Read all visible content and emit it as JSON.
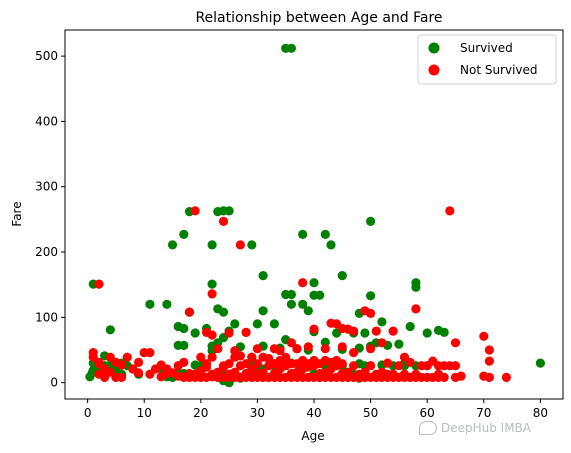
{
  "chart_data": {
    "type": "scatter",
    "title": "Relationship between Age and Fare",
    "xlabel": "Age",
    "ylabel": "Fare",
    "xlim": [
      -4,
      84
    ],
    "ylim": [
      -25,
      540
    ],
    "xticks": [
      0,
      10,
      20,
      30,
      40,
      50,
      60,
      70,
      80
    ],
    "yticks": [
      0,
      100,
      200,
      300,
      400,
      500
    ],
    "grid": false,
    "legend_position": "top-right",
    "series": [
      {
        "name": "Survived",
        "color": "#008000",
        "points": [
          [
            35,
            512
          ],
          [
            36,
            512
          ],
          [
            18,
            262
          ],
          [
            23,
            262
          ],
          [
            24,
            263
          ],
          [
            25,
            263
          ],
          [
            22,
            211
          ],
          [
            15,
            211
          ],
          [
            50,
            247
          ],
          [
            17,
            227
          ],
          [
            29,
            211
          ],
          [
            38,
            227
          ],
          [
            42,
            227
          ],
          [
            43,
            211
          ],
          [
            31,
            164
          ],
          [
            45,
            164
          ],
          [
            58,
            153
          ],
          [
            58,
            146
          ],
          [
            1,
            151
          ],
          [
            40,
            153
          ],
          [
            22,
            151
          ],
          [
            35,
            135
          ],
          [
            36,
            135
          ],
          [
            41,
            134
          ],
          [
            40,
            134
          ],
          [
            50,
            133
          ],
          [
            23,
            113
          ],
          [
            11,
            120
          ],
          [
            14,
            120
          ],
          [
            38,
            120
          ],
          [
            36,
            120
          ],
          [
            18,
            108
          ],
          [
            24,
            108
          ],
          [
            31,
            110
          ],
          [
            39,
            110
          ],
          [
            48,
            106
          ],
          [
            52,
            93
          ],
          [
            33,
            90
          ],
          [
            26,
            90
          ],
          [
            21,
            83
          ],
          [
            17,
            83
          ],
          [
            62,
            80
          ],
          [
            63,
            77
          ],
          [
            60,
            76
          ],
          [
            57,
            86
          ],
          [
            4,
            81
          ],
          [
            16,
            86
          ],
          [
            19,
            76
          ],
          [
            30,
            90
          ],
          [
            49,
            76
          ],
          [
            44,
            76
          ],
          [
            40,
            78
          ],
          [
            47,
            76
          ],
          [
            16,
            57
          ],
          [
            22,
            56
          ],
          [
            23,
            61
          ],
          [
            24,
            69
          ],
          [
            25,
            79
          ],
          [
            28,
            77
          ],
          [
            31,
            56
          ],
          [
            34,
            53
          ],
          [
            37,
            52
          ],
          [
            45,
            51
          ],
          [
            48,
            53
          ],
          [
            50,
            56
          ],
          [
            51,
            61
          ],
          [
            53,
            57
          ],
          [
            55,
            59
          ],
          [
            35,
            66
          ],
          [
            42,
            62
          ],
          [
            17,
            57
          ],
          [
            22,
            49
          ],
          [
            27,
            55
          ],
          [
            29,
            39
          ],
          [
            34,
            31
          ],
          [
            38,
            26
          ],
          [
            44,
            29
          ],
          [
            48,
            29
          ],
          [
            52,
            27
          ],
          [
            56,
            26
          ],
          [
            60,
            26
          ],
          [
            62,
            10
          ],
          [
            80,
            30
          ],
          [
            0.4,
            9
          ],
          [
            0.8,
            15
          ],
          [
            1,
            19
          ],
          [
            2,
            22
          ],
          [
            3,
            26
          ],
          [
            4,
            27
          ],
          [
            5,
            19
          ],
          [
            6,
            13
          ],
          [
            7,
            26
          ],
          [
            8,
            21
          ],
          [
            9,
            13
          ],
          [
            14,
            11
          ],
          [
            15,
            8
          ],
          [
            16,
            15
          ],
          [
            18,
            12
          ],
          [
            19,
            27
          ],
          [
            20,
            26
          ],
          [
            21,
            8
          ],
          [
            22,
            10
          ],
          [
            23,
            12
          ],
          [
            24,
            13
          ],
          [
            25,
            8
          ],
          [
            26,
            13
          ],
          [
            27,
            7
          ],
          [
            28,
            13
          ],
          [
            29,
            26
          ],
          [
            30,
            12
          ],
          [
            31,
            21
          ],
          [
            32,
            8
          ],
          [
            33,
            26
          ],
          [
            35,
            26
          ],
          [
            36,
            13
          ],
          [
            40,
            13
          ],
          [
            41,
            8
          ],
          [
            42,
            26
          ],
          [
            45,
            26
          ],
          [
            47,
            13
          ],
          [
            48,
            7
          ],
          [
            49,
            26
          ],
          [
            50,
            26
          ],
          [
            52,
            10
          ],
          [
            54,
            26
          ],
          [
            56,
            30
          ],
          [
            58,
            26
          ],
          [
            3,
            41
          ],
          [
            1,
            30
          ],
          [
            24,
            3
          ],
          [
            25,
            0
          ],
          [
            30,
            26
          ],
          [
            36,
            30
          ],
          [
            39,
            50
          ],
          [
            13,
            21
          ],
          [
            14,
            9
          ],
          [
            6,
            30
          ],
          [
            17,
            14
          ]
        ]
      },
      {
        "name": "Not Survived",
        "color": "#ff0000",
        "points": [
          [
            64,
            263
          ],
          [
            19,
            263
          ],
          [
            24,
            247
          ],
          [
            27,
            211
          ],
          [
            22,
            136
          ],
          [
            38,
            153
          ],
          [
            18,
            108
          ],
          [
            58,
            113
          ],
          [
            49,
            110
          ],
          [
            50,
            106
          ],
          [
            43,
            91
          ],
          [
            54,
            79
          ],
          [
            44,
            90
          ],
          [
            47,
            79
          ],
          [
            46,
            82
          ],
          [
            21,
            77
          ],
          [
            28,
            77
          ],
          [
            25,
            76
          ],
          [
            40,
            82
          ],
          [
            45,
            83
          ],
          [
            36,
            61
          ],
          [
            65,
            61
          ],
          [
            52,
            61
          ],
          [
            70,
            71
          ],
          [
            71,
            50
          ],
          [
            71,
            33
          ],
          [
            2,
            151
          ],
          [
            22,
            73
          ],
          [
            23,
            52
          ],
          [
            26,
            49
          ],
          [
            30,
            52
          ],
          [
            33,
            52
          ],
          [
            34,
            49
          ],
          [
            37,
            52
          ],
          [
            39,
            55
          ],
          [
            42,
            52
          ],
          [
            45,
            55
          ],
          [
            47,
            46
          ],
          [
            50,
            52
          ],
          [
            53,
            30
          ],
          [
            55,
            26
          ],
          [
            57,
            31
          ],
          [
            59,
            26
          ],
          [
            60,
            26
          ],
          [
            62,
            26
          ],
          [
            64,
            26
          ],
          [
            65,
            26
          ],
          [
            74,
            8
          ],
          [
            66,
            10
          ],
          [
            70,
            10
          ],
          [
            61,
            33
          ],
          [
            56,
            39
          ],
          [
            63,
            26
          ],
          [
            51,
            79
          ],
          [
            1,
            46
          ],
          [
            1,
            39
          ],
          [
            2,
            29
          ],
          [
            2,
            31
          ],
          [
            3,
            21
          ],
          [
            4,
            39
          ],
          [
            5,
            31
          ],
          [
            6,
            27
          ],
          [
            7,
            39
          ],
          [
            8,
            21
          ],
          [
            9,
            31
          ],
          [
            10,
            46
          ],
          [
            11,
            46
          ],
          [
            12,
            21
          ],
          [
            13,
            27
          ],
          [
            14,
            21
          ],
          [
            15,
            15
          ],
          [
            16,
            10
          ],
          [
            17,
            8
          ],
          [
            18,
            8
          ],
          [
            19,
            8
          ],
          [
            20,
            8
          ],
          [
            21,
            8
          ],
          [
            22,
            9
          ],
          [
            23,
            8
          ],
          [
            24,
            8
          ],
          [
            25,
            8
          ],
          [
            26,
            8
          ],
          [
            27,
            8
          ],
          [
            28,
            8
          ],
          [
            29,
            8
          ],
          [
            30,
            8
          ],
          [
            31,
            8
          ],
          [
            32,
            8
          ],
          [
            33,
            8
          ],
          [
            34,
            8
          ],
          [
            35,
            8
          ],
          [
            36,
            8
          ],
          [
            37,
            8
          ],
          [
            38,
            8
          ],
          [
            39,
            8
          ],
          [
            40,
            8
          ],
          [
            41,
            8
          ],
          [
            42,
            8
          ],
          [
            43,
            8
          ],
          [
            44,
            8
          ],
          [
            45,
            8
          ],
          [
            46,
            8
          ],
          [
            47,
            8
          ],
          [
            48,
            8
          ],
          [
            49,
            8
          ],
          [
            50,
            8
          ],
          [
            51,
            8
          ],
          [
            52,
            8
          ],
          [
            53,
            8
          ],
          [
            54,
            8
          ],
          [
            55,
            8
          ],
          [
            56,
            8
          ],
          [
            57,
            8
          ],
          [
            58,
            8
          ],
          [
            59,
            8
          ],
          [
            60,
            8
          ],
          [
            61,
            8
          ],
          [
            62,
            8
          ],
          [
            63,
            8
          ],
          [
            65,
            8
          ],
          [
            71,
            8
          ],
          [
            18,
            14
          ],
          [
            19,
            13
          ],
          [
            20,
            18
          ],
          [
            21,
            24
          ],
          [
            22,
            13
          ],
          [
            23,
            16
          ],
          [
            24,
            24
          ],
          [
            25,
            13
          ],
          [
            26,
            16
          ],
          [
            27,
            26
          ],
          [
            28,
            14
          ],
          [
            29,
            21
          ],
          [
            30,
            14
          ],
          [
            31,
            15
          ],
          [
            32,
            26
          ],
          [
            33,
            14
          ],
          [
            34,
            21
          ],
          [
            35,
            26
          ],
          [
            36,
            14
          ],
          [
            37,
            16
          ],
          [
            38,
            21
          ],
          [
            39,
            24
          ],
          [
            40,
            26
          ],
          [
            41,
            14
          ],
          [
            42,
            15
          ],
          [
            43,
            21
          ],
          [
            44,
            26
          ],
          [
            45,
            14
          ],
          [
            46,
            16
          ],
          [
            47,
            26
          ],
          [
            48,
            13
          ],
          [
            49,
            16
          ],
          [
            50,
            26
          ],
          [
            51,
            13
          ],
          [
            52,
            16
          ],
          [
            53,
            13
          ],
          [
            54,
            13
          ],
          [
            56,
            13
          ],
          [
            58,
            13
          ],
          [
            62,
            13
          ],
          [
            2,
            13
          ],
          [
            3,
            8
          ],
          [
            4,
            16
          ],
          [
            5,
            8
          ],
          [
            6,
            8
          ],
          [
            9,
            15
          ],
          [
            11,
            13
          ],
          [
            13,
            9
          ],
          [
            14,
            14
          ],
          [
            16,
            26
          ],
          [
            17,
            31
          ],
          [
            20,
            39
          ],
          [
            21,
            29
          ],
          [
            22,
            39
          ],
          [
            24,
            26
          ],
          [
            25,
            29
          ],
          [
            26,
            39
          ],
          [
            27,
            41
          ],
          [
            28,
            29
          ],
          [
            29,
            39
          ],
          [
            30,
            29
          ],
          [
            31,
            39
          ],
          [
            32,
            37
          ],
          [
            33,
            29
          ],
          [
            34,
            34
          ],
          [
            35,
            39
          ],
          [
            36,
            29
          ],
          [
            37,
            29
          ],
          [
            38,
            34
          ],
          [
            39,
            29
          ],
          [
            40,
            34
          ],
          [
            41,
            29
          ],
          [
            42,
            34
          ],
          [
            43,
            31
          ],
          [
            44,
            34
          ],
          [
            45,
            29
          ]
        ]
      }
    ]
  },
  "watermark": {
    "icon": "chat-bubble-icon",
    "text": "DeepHub IMBA"
  }
}
